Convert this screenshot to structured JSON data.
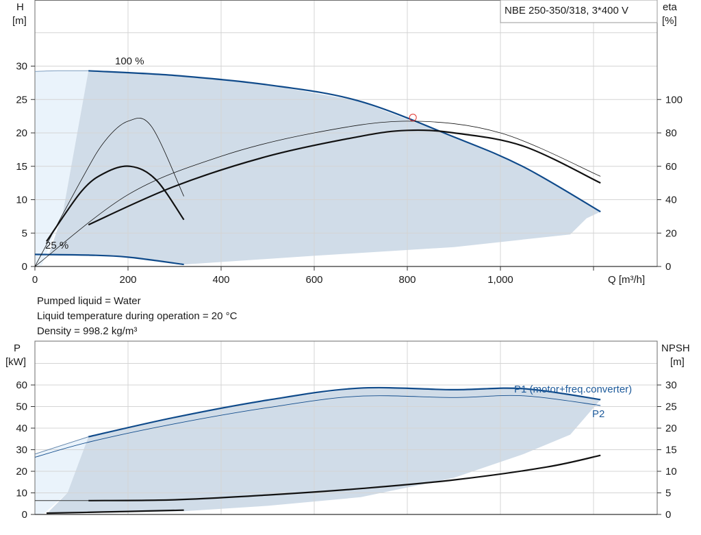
{
  "top_chart": {
    "title_box": "NBE 250-350/318, 3*400 V",
    "y_left_label": [
      "H",
      "[m]"
    ],
    "y_right_label": [
      "eta",
      "[%]"
    ],
    "x_label": "Q [m³/h]",
    "label_100": "100 %",
    "label_25": "25 %",
    "x_ticks": [
      "0",
      "200",
      "400",
      "600",
      "800",
      "1,000"
    ],
    "y_left_ticks": [
      "0",
      "5",
      "10",
      "15",
      "20",
      "25",
      "30"
    ],
    "y_right_ticks": [
      "0",
      "20",
      "40",
      "60",
      "80",
      "100"
    ]
  },
  "liquid_info": {
    "line1": "Pumped liquid = Water",
    "line2": "Liquid temperature during operation = 20 °C",
    "line3": "Density = 998.2 kg/m³"
  },
  "bottom_chart": {
    "y_left_label": [
      "P",
      "[kW]"
    ],
    "y_right_label": [
      "NPSH",
      "[m]"
    ],
    "label_p1": "P1 (motor+freq.converter)",
    "label_p2": "P2",
    "y_left_ticks": [
      "0",
      "10",
      "20",
      "30",
      "40",
      "50",
      "60"
    ],
    "y_right_ticks": [
      "0",
      "5",
      "10",
      "15",
      "20",
      "25",
      "30"
    ]
  },
  "colors": {
    "area_fill": "#d0dce8",
    "light_area": "#eaf3fb",
    "curve_blue": "#0f4a8a",
    "grid": "#d4d4d4",
    "text_blue": "#1d5a9a"
  },
  "chart_data": [
    {
      "type": "line",
      "title": "NBE 250-350/318, 3*400 V",
      "xlabel": "Q [m³/h]",
      "ylabel": "H [m]",
      "y2label": "eta [%]",
      "xlim": [
        0,
        1320
      ],
      "ylim": [
        0,
        40
      ],
      "y2lim": [
        0,
        160
      ],
      "grid": true,
      "series": [
        {
          "name": "100 %",
          "axis": "H",
          "x": [
            0,
            50,
            115,
            300,
            500,
            695,
            900,
            1050,
            1215
          ],
          "y": [
            29.2,
            29.3,
            29.3,
            28.6,
            27.2,
            24.8,
            19.4,
            14.9,
            8.2
          ]
        },
        {
          "name": "25 %",
          "axis": "H",
          "x": [
            0,
            115,
            200,
            320
          ],
          "y": [
            1.8,
            1.7,
            1.4,
            0.3
          ]
        },
        {
          "axis": "eta",
          "x": [
            25,
            100,
            150,
            205,
            260,
            320
          ],
          "y": [
            15,
            45,
            56,
            60,
            52,
            28
          ]
        },
        {
          "axis": "eta",
          "x": [
            115,
            300,
            500,
            700,
            800,
            900,
            1050,
            1215
          ],
          "y": [
            25,
            48,
            66,
            78,
            81.5,
            80,
            72,
            50
          ]
        },
        {
          "axis": "eta",
          "x": [
            0,
            100,
            150,
            200,
            250,
            320
          ],
          "y": [
            0,
            52,
            75,
            87,
            84,
            42
          ]
        },
        {
          "axis": "eta",
          "x": [
            0,
            200,
            400,
            600,
            800,
            1000,
            1215
          ],
          "y": [
            0,
            43,
            66,
            80,
            87,
            80,
            54
          ]
        }
      ],
      "operating_point": {
        "x": 812,
        "y": 22.3
      }
    },
    {
      "type": "line",
      "ylabel": "P [kW]",
      "y2label": "NPSH [m]",
      "xlim": [
        0,
        1320
      ],
      "ylim": [
        0,
        70
      ],
      "y2lim": [
        0,
        35
      ],
      "grid": true,
      "series": [
        {
          "name": "P1 (motor+freq.converter)",
          "axis": "P",
          "x": [
            0,
            115,
            300,
            500,
            695,
            900,
            1050,
            1215
          ],
          "y": [
            28,
            36,
            45,
            53,
            58.5,
            57.8,
            58.3,
            53.2
          ]
        },
        {
          "name": "P2",
          "axis": "P",
          "x": [
            0,
            115,
            300,
            500,
            695,
            900,
            1050,
            1215
          ],
          "y": [
            26.5,
            33.5,
            42,
            49.5,
            54.8,
            54.2,
            55,
            50.5
          ]
        },
        {
          "axis": "NPSH",
          "x": [
            0,
            115,
            300,
            500,
            700,
            900,
            1100,
            1215
          ],
          "y": [
            3.2,
            3.2,
            3.4,
            4.5,
            6,
            8,
            11,
            13.7
          ]
        },
        {
          "axis": "NPSH",
          "x": [
            25,
            115,
            200,
            320
          ],
          "y": [
            0.3,
            0.5,
            0.7,
            1
          ]
        }
      ]
    }
  ]
}
